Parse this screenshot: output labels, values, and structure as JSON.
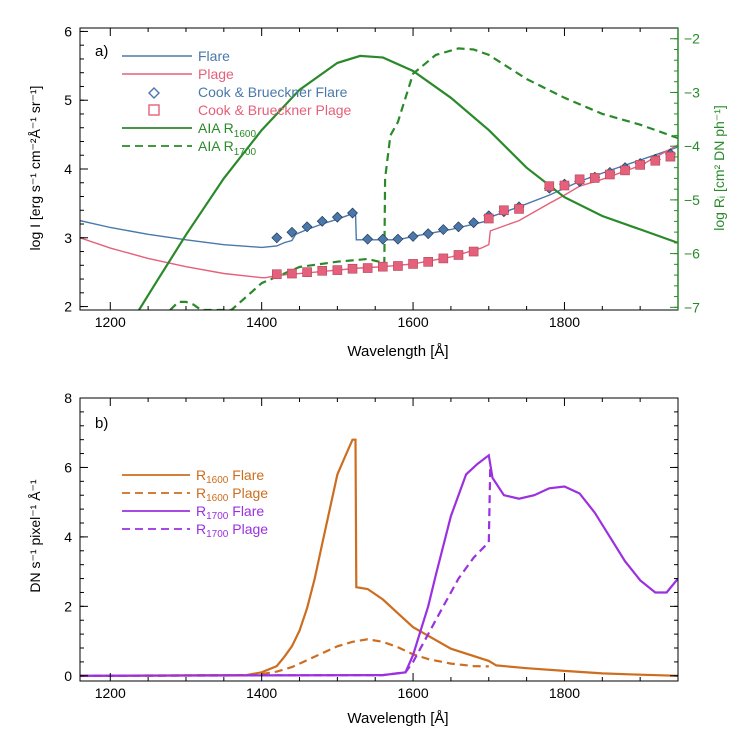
{
  "colors": {
    "flare_blue": "#4a78aa",
    "plage_pink": "#e5607a",
    "green": "#2a8a2a",
    "orange": "#cc6d1f",
    "purple": "#9b30e0",
    "axis": "#000000"
  },
  "chart_data": [
    {
      "panel_label": "a)",
      "type": "line",
      "xlabel": "Wavelength [Å]",
      "xlim": [
        1160,
        1950
      ],
      "xticks": [
        1200,
        1400,
        1600,
        1800
      ],
      "ylabel": "log I [erg s⁻¹ cm⁻²Å⁻¹ sr⁻¹]",
      "ylim": [
        1.95,
        6.05
      ],
      "yticks": [
        2,
        3,
        4,
        5,
        6
      ],
      "y2label": "log Rᵢ [cm² DN ph⁻¹]",
      "y2lim": [
        -7.05,
        -1.8
      ],
      "y2ticks": [
        -7,
        -6,
        -5,
        -4,
        -3,
        -2
      ],
      "legend": {
        "flare": "Flare",
        "plage": "Plage",
        "cb_flare": "Cook & Brueckner Flare",
        "cb_plage": "Cook & Brueckner Plage",
        "aia_prefix": "AIA R",
        "aia_1600_sub": "1600",
        "aia_1700_sub": "1700"
      },
      "series": [
        {
          "name": "Flare",
          "axis": "left",
          "style": "solid",
          "color": "#4a78aa",
          "x": [
            1160,
            1200,
            1250,
            1300,
            1350,
            1400,
            1420,
            1430,
            1440,
            1445,
            1460,
            1480,
            1500,
            1520,
            1524,
            1525,
            1560,
            1580,
            1600,
            1650,
            1700,
            1702,
            1740,
            1780,
            1820,
            1860,
            1900,
            1950
          ],
          "y": [
            3.25,
            3.15,
            3.05,
            2.97,
            2.9,
            2.86,
            2.88,
            2.93,
            2.96,
            3.05,
            3.12,
            3.2,
            3.27,
            3.35,
            3.37,
            2.97,
            2.97,
            2.97,
            3.02,
            3.12,
            3.25,
            3.3,
            3.45,
            3.62,
            3.82,
            3.98,
            4.13,
            4.32
          ]
        },
        {
          "name": "Plage",
          "axis": "left",
          "style": "solid",
          "color": "#e5607a",
          "x": [
            1160,
            1200,
            1250,
            1300,
            1350,
            1400,
            1405,
            1420,
            1440,
            1470,
            1500,
            1530,
            1560,
            1600,
            1650,
            1690,
            1700,
            1702,
            1740,
            1780,
            1800,
            1820,
            1850,
            1900,
            1950
          ],
          "y": [
            3.0,
            2.85,
            2.7,
            2.58,
            2.48,
            2.42,
            2.42,
            2.45,
            2.47,
            2.5,
            2.53,
            2.56,
            2.58,
            2.62,
            2.72,
            2.85,
            2.9,
            3.1,
            3.25,
            3.5,
            3.62,
            3.75,
            3.85,
            4.05,
            4.35
          ]
        },
        {
          "name": "AIA R1600",
          "axis": "right",
          "style": "solid",
          "color": "#2a8a2a",
          "x": [
            1238,
            1260,
            1300,
            1350,
            1400,
            1450,
            1500,
            1530,
            1560,
            1600,
            1650,
            1700,
            1750,
            1800,
            1850,
            1900,
            1950
          ],
          "y": [
            -7.05,
            -6.55,
            -5.65,
            -4.6,
            -3.7,
            -2.95,
            -2.45,
            -2.32,
            -2.35,
            -2.6,
            -3.1,
            -3.7,
            -4.4,
            -4.95,
            -5.3,
            -5.55,
            -5.8
          ]
        },
        {
          "name": "AIA R1700",
          "axis": "right",
          "style": "dash",
          "color": "#2a8a2a",
          "x": [
            1279,
            1290,
            1300,
            1310,
            1320,
            1330,
            1360,
            1400,
            1450,
            1500,
            1540,
            1555,
            1562,
            1563,
            1570,
            1580,
            1590,
            1600,
            1630,
            1660,
            1680,
            1700,
            1750,
            1800,
            1850,
            1900,
            1950
          ],
          "y": [
            -7.05,
            -6.9,
            -6.9,
            -6.95,
            -7.05,
            -7.05,
            -7.05,
            -6.55,
            -6.25,
            -6.15,
            -6.1,
            -6.15,
            -6.2,
            -4.6,
            -3.8,
            -3.55,
            -3.1,
            -2.65,
            -2.3,
            -2.18,
            -2.2,
            -2.3,
            -2.75,
            -3.1,
            -3.4,
            -3.6,
            -3.85
          ]
        }
      ],
      "markers": [
        {
          "name": "Cook & Brueckner Flare",
          "shape": "diamond",
          "color": "#4a78aa",
          "x": [
            1420,
            1440,
            1460,
            1480,
            1500,
            1520,
            1540,
            1560,
            1580,
            1600,
            1620,
            1640,
            1660,
            1680,
            1700,
            1720,
            1740,
            1780,
            1800,
            1820,
            1840,
            1860,
            1880,
            1900,
            1920,
            1940
          ],
          "y": [
            3.0,
            3.08,
            3.16,
            3.24,
            3.3,
            3.36,
            2.98,
            2.98,
            2.98,
            3.02,
            3.06,
            3.12,
            3.16,
            3.22,
            3.32,
            3.38,
            3.45,
            3.72,
            3.78,
            3.82,
            3.88,
            3.95,
            4.02,
            4.08,
            4.14,
            4.22
          ]
        },
        {
          "name": "Cook & Brueckner Plage",
          "shape": "square",
          "color": "#e5607a",
          "x": [
            1420,
            1440,
            1460,
            1480,
            1500,
            1520,
            1540,
            1560,
            1580,
            1600,
            1620,
            1640,
            1660,
            1680,
            1700,
            1720,
            1740,
            1780,
            1800,
            1820,
            1840,
            1860,
            1880,
            1900,
            1920,
            1940
          ],
          "y": [
            2.47,
            2.48,
            2.5,
            2.52,
            2.53,
            2.55,
            2.56,
            2.58,
            2.59,
            2.62,
            2.65,
            2.7,
            2.75,
            2.8,
            3.28,
            3.4,
            3.42,
            3.75,
            3.76,
            3.85,
            3.87,
            3.92,
            3.98,
            4.06,
            4.12,
            4.18
          ]
        }
      ]
    },
    {
      "panel_label": "b)",
      "type": "line",
      "xlabel": "Wavelength [Å]",
      "xlim": [
        1160,
        1950
      ],
      "xticks": [
        1200,
        1400,
        1600,
        1800
      ],
      "ylabel": "DN s⁻¹ pixel⁻¹ Å⁻¹",
      "ylim": [
        -0.15,
        8
      ],
      "yticks": [
        0,
        2,
        4,
        6,
        8
      ],
      "legend": {
        "r_prefix": "R",
        "sub_1600": "1600",
        "sub_1700": "1700",
        "flare": "Flare",
        "plage": "Plage"
      },
      "series": [
        {
          "name": "R1600 Flare",
          "style": "solid",
          "color": "#cc6d1f",
          "x": [
            1160,
            1380,
            1400,
            1420,
            1430,
            1440,
            1450,
            1460,
            1470,
            1480,
            1490,
            1500,
            1510,
            1520,
            1524,
            1525,
            1540,
            1560,
            1580,
            1600,
            1650,
            1700,
            1710,
            1750,
            1800,
            1850,
            1900,
            1950
          ],
          "y": [
            0,
            0.02,
            0.1,
            0.28,
            0.55,
            0.85,
            1.3,
            1.95,
            2.8,
            3.8,
            4.8,
            5.8,
            6.3,
            6.8,
            6.8,
            2.55,
            2.5,
            2.2,
            1.8,
            1.4,
            0.78,
            0.43,
            0.3,
            0.22,
            0.14,
            0.07,
            0.03,
            0.0
          ]
        },
        {
          "name": "R1600 Plage",
          "style": "dash",
          "color": "#cc6d1f",
          "x": [
            1160,
            1380,
            1400,
            1420,
            1440,
            1460,
            1480,
            1500,
            1520,
            1540,
            1560,
            1580,
            1600,
            1620,
            1650,
            1680,
            1700
          ],
          "y": [
            0,
            0.02,
            0.05,
            0.12,
            0.25,
            0.45,
            0.65,
            0.85,
            0.98,
            1.05,
            0.98,
            0.82,
            0.62,
            0.48,
            0.35,
            0.28,
            0.27
          ]
        },
        {
          "name": "R1700 Flare",
          "style": "solid",
          "color": "#9b30e0",
          "x": [
            1160,
            1560,
            1590,
            1600,
            1610,
            1620,
            1630,
            1650,
            1670,
            1685,
            1700,
            1705,
            1720,
            1740,
            1760,
            1780,
            1800,
            1820,
            1840,
            1860,
            1880,
            1900,
            1920,
            1935,
            1950
          ],
          "y": [
            0,
            0.02,
            0.1,
            0.6,
            1.3,
            2.0,
            2.9,
            4.6,
            5.8,
            6.1,
            6.35,
            5.7,
            5.2,
            5.1,
            5.2,
            5.4,
            5.45,
            5.25,
            4.7,
            4.0,
            3.3,
            2.75,
            2.4,
            2.4,
            2.8
          ]
        },
        {
          "name": "R1700 Plage",
          "style": "dash",
          "color": "#9b30e0",
          "x": [
            1160,
            1560,
            1590,
            1600,
            1620,
            1640,
            1660,
            1680,
            1700,
            1702
          ],
          "y": [
            0,
            0.02,
            0.1,
            0.4,
            1.2,
            2.0,
            2.8,
            3.4,
            3.85,
            6.1
          ]
        }
      ]
    }
  ]
}
